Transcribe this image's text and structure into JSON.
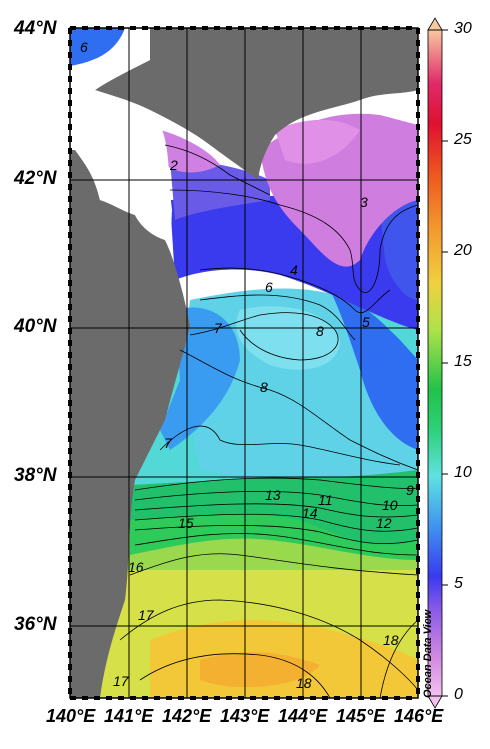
{
  "map": {
    "latitude_labels": [
      "44°N",
      "42°N",
      "40°N",
      "38°N",
      "36°N"
    ],
    "longitude_labels": [
      "140°E",
      "141°E",
      "142°E",
      "143°E",
      "144°E",
      "145°E",
      "146°E"
    ],
    "contour_labels": [
      "6",
      "2",
      "3",
      "4",
      "6",
      "5",
      "7",
      "8",
      "8",
      "7",
      "13",
      "11",
      "9",
      "10",
      "14",
      "12",
      "15",
      "16",
      "17",
      "18",
      "18",
      "17"
    ],
    "colorbar": {
      "ticks": [
        "30",
        "25",
        "20",
        "15",
        "10",
        "5",
        "0"
      ],
      "min": 0,
      "max": 30
    },
    "credit": "Ocean Data View",
    "colors": {
      "land": "#6b6b6b",
      "coast_blank": "#ffffff",
      "grid": "#000000",
      "palette": [
        "#ee9aee",
        "#c87ae0",
        "#7a5ae6",
        "#3a3aee",
        "#2f6ef0",
        "#4ab0ee",
        "#5fe2e2",
        "#4fe0a8",
        "#2ed07a",
        "#7ed85a",
        "#c8e24a",
        "#f0d040",
        "#f2a030",
        "#ee5030",
        "#e01030",
        "#f4b080"
      ]
    }
  }
}
